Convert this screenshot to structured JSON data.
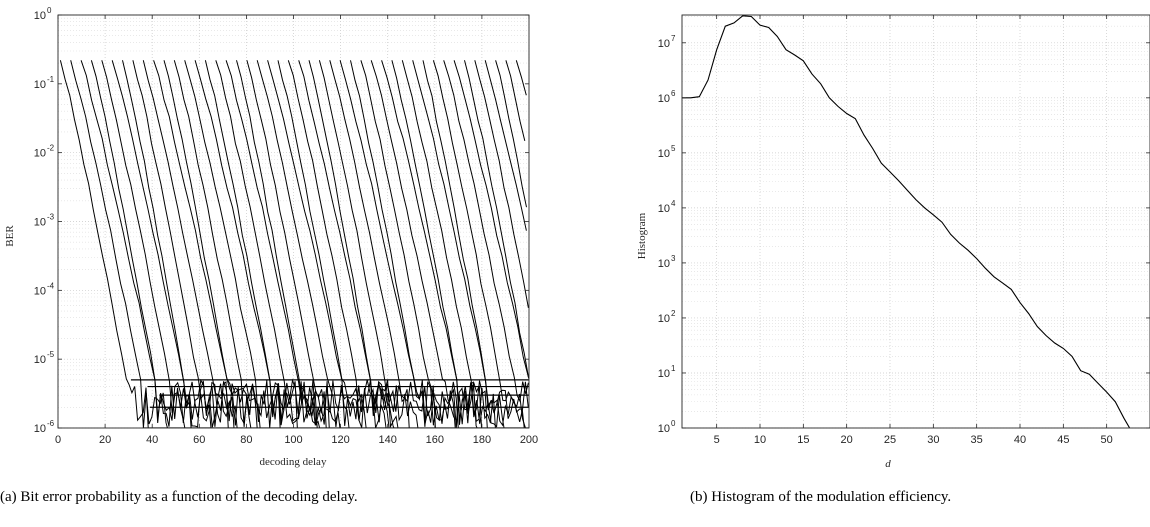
{
  "chart_data": [
    {
      "id": "a",
      "type": "line",
      "caption": "(a) Bit error probability as a function of the decoding delay.",
      "xlabel": "decoding delay",
      "ylabel": "BER",
      "yscale": "log",
      "xlim": [
        0,
        200
      ],
      "ylim": [
        1e-06,
        1
      ],
      "xticks": [
        0,
        20,
        40,
        60,
        80,
        100,
        120,
        140,
        160,
        180,
        200
      ],
      "ytick_exponents": [
        -6,
        -5,
        -4,
        -3,
        -2,
        -1,
        0
      ],
      "grid": true,
      "line_color": "#000000",
      "series_description": "Family of ~46 waterfall curves, one per starting delay offset (spaced ~4.4 units apart, first at x≈1). Each curve starts near BER 0.22 and falls steeply, reaching ~5e-6 within ~30 decoding-delay units, then hovers at error floors between 1e-6 and 5e-6.",
      "series_start_x": [
        1,
        5.4,
        9.8,
        14.2,
        18.6,
        23,
        27.4,
        31.8,
        36.2,
        40.6,
        45,
        49.4,
        53.8,
        58.2,
        62.6,
        67,
        71.4,
        75.8,
        80.2,
        84.6,
        89,
        93.4,
        97.8,
        102.2,
        106.6,
        111,
        115.4,
        119.8,
        124.2,
        128.6,
        133,
        137.4,
        141.8,
        146.2,
        150.6,
        155,
        159.4,
        163.8,
        168.2,
        172.6,
        177,
        181.4,
        185.8,
        190.2,
        194.6,
        199
      ],
      "series_start_ber": 0.22,
      "floor_levels": [
        5e-06,
        4e-06,
        3e-06,
        2e-06,
        1e-06
      ],
      "floor_start_x": [
        31,
        38,
        43,
        39,
        36
      ]
    },
    {
      "id": "b",
      "type": "line",
      "caption": "(b) Histogram of the modulation efficiency.",
      "xlabel": "d",
      "ylabel": "Histogram",
      "yscale": "log",
      "xlim": [
        1,
        55
      ],
      "ylim": [
        1,
        32000000.0
      ],
      "xticks": [
        5,
        10,
        15,
        20,
        25,
        30,
        35,
        40,
        45,
        50
      ],
      "ytick_exponents": [
        0,
        1,
        2,
        3,
        4,
        5,
        6,
        7
      ],
      "grid": true,
      "line_color": "#000000",
      "x": [
        1,
        2,
        3,
        4,
        5,
        6,
        7,
        8,
        9,
        10,
        11,
        12,
        13,
        14,
        15,
        16,
        17,
        18,
        19,
        20,
        21,
        22,
        23,
        24,
        25,
        26,
        27,
        28,
        29,
        30,
        31,
        32,
        33,
        34,
        35,
        36,
        37,
        38,
        39,
        40,
        41,
        42,
        43,
        44,
        45,
        46,
        47,
        48,
        49,
        50,
        51,
        52,
        53
      ],
      "y": [
        1000000,
        1000000,
        1050000,
        2100000,
        7500000,
        20000000,
        23000000,
        31000000,
        30000000,
        21000000,
        19000000,
        13000000,
        7500000,
        6000000,
        4700000,
        2700000,
        1800000,
        1000000,
        700000,
        520000,
        420000,
        210000,
        120000,
        65000,
        45000,
        31000,
        21000,
        14000,
        10000,
        7500,
        5500,
        3300,
        2300,
        1700,
        1200,
        800,
        560,
        430,
        330,
        190,
        120,
        70,
        48,
        35,
        28,
        20,
        11,
        9.5,
        6.5,
        4.5,
        3,
        1.5,
        0.8
      ]
    }
  ]
}
